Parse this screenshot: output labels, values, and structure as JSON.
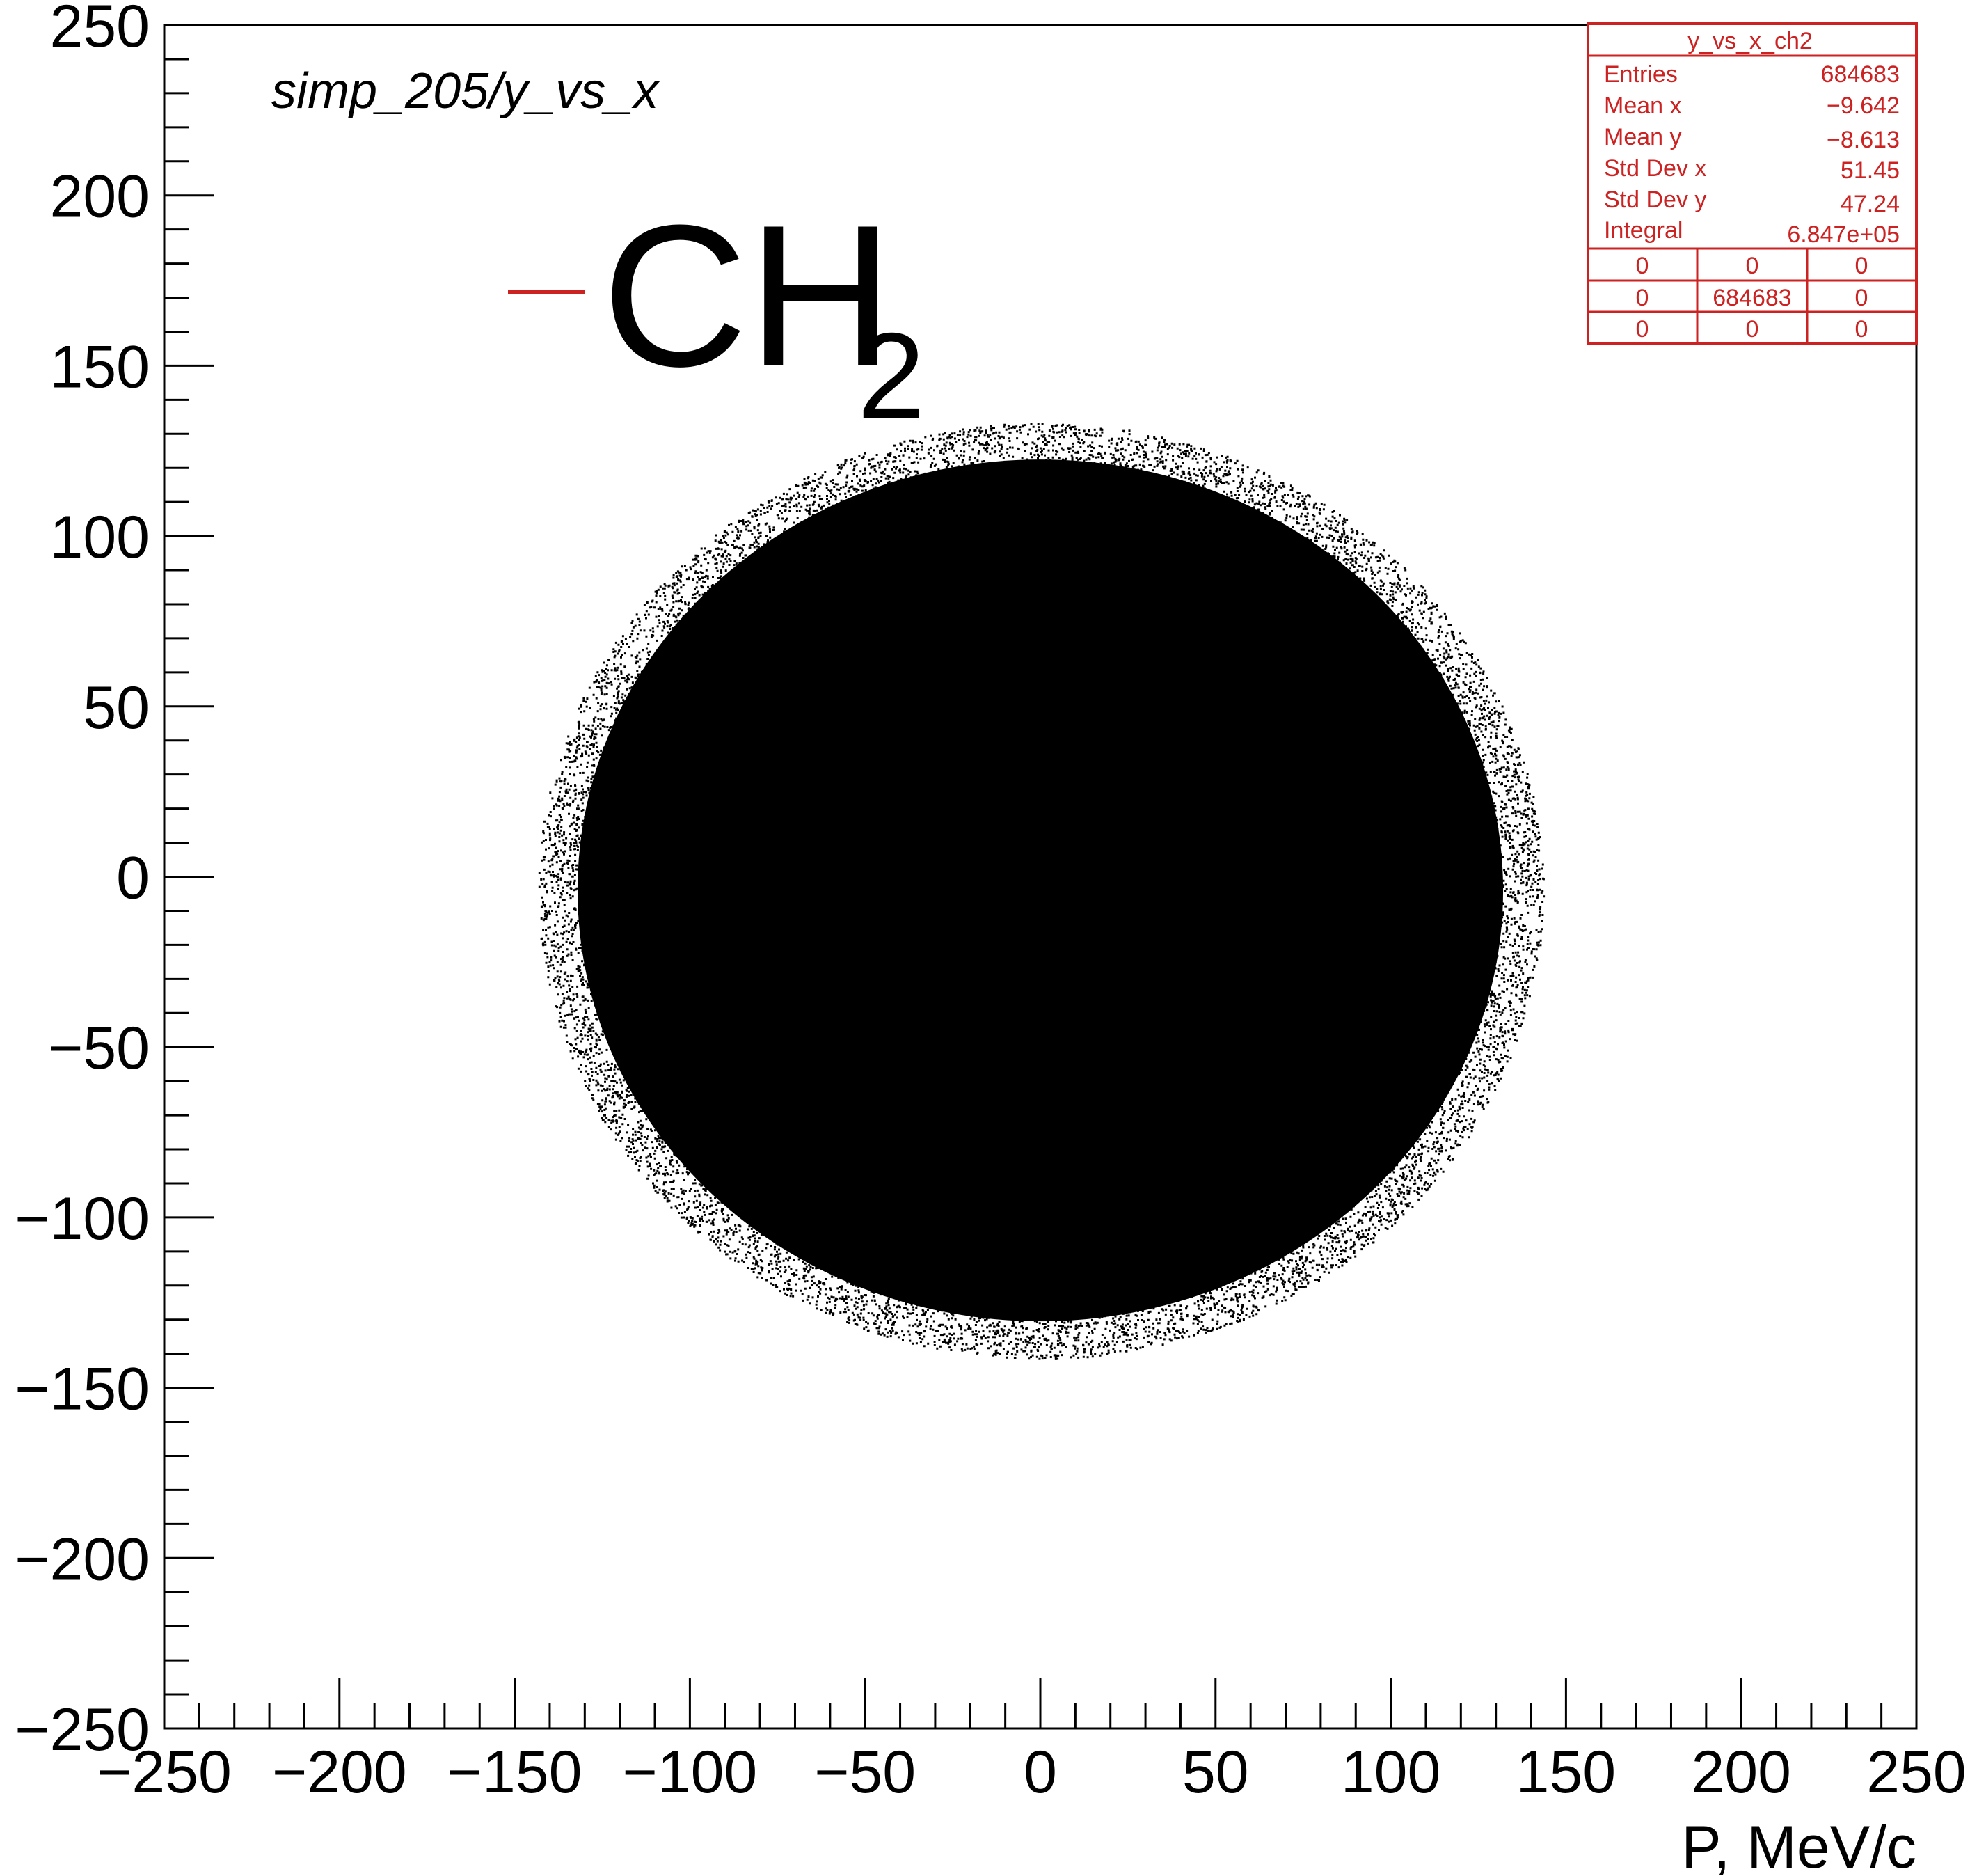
{
  "chart_data": {
    "type": "scatter",
    "title": "simp_205/y_vs_x",
    "xlabel": "P, MeV/c",
    "ylabel": "",
    "xlim": [
      -250,
      250
    ],
    "ylim": [
      -250,
      250
    ],
    "x_ticks": [
      -250,
      -200,
      -150,
      -100,
      -50,
      0,
      50,
      100,
      150,
      200,
      250
    ],
    "y_ticks": [
      -250,
      -200,
      -150,
      -100,
      -50,
      0,
      50,
      100,
      150,
      200,
      250
    ],
    "x_tick_labels": [
      "−250",
      "−200",
      "−150",
      "−100",
      "−50",
      "0",
      "50",
      "100",
      "150",
      "200",
      "250"
    ],
    "y_tick_labels": [
      "−250",
      "−200",
      "−150",
      "−100",
      "−50",
      "0",
      "50",
      "100",
      "150",
      "200",
      "250"
    ],
    "grid": false,
    "marker_color": "#000000",
    "series": [
      {
        "name": "CH2",
        "color": "#cc2222",
        "distribution": {
          "center_x": -9.642,
          "center_y": -8.613,
          "extent_x": [
            -142,
            142
          ],
          "extent_y": [
            -140,
            132
          ],
          "std_x": 51.45,
          "std_y": 47.24,
          "entries": 684683
        }
      }
    ],
    "legend": {
      "position": "top-left",
      "entries": [
        {
          "label": "CH",
          "subscript": "2",
          "color": "#cc2222"
        }
      ]
    },
    "stats_box": {
      "position": "top-right",
      "title": "y_vs_x_ch2",
      "rows": [
        {
          "label": "Entries",
          "value": "684683"
        },
        {
          "label": "Mean x",
          "value": "−9.642"
        },
        {
          "label": "Mean y",
          "value": "−8.613"
        },
        {
          "label": "Std Dev x",
          "value": "51.45"
        },
        {
          "label": "Std Dev y",
          "value": "47.24"
        },
        {
          "label": "Integral",
          "value": "6.847e+05"
        }
      ],
      "grid": [
        [
          "0",
          "0",
          "0"
        ],
        [
          "0",
          "684683",
          "0"
        ],
        [
          "0",
          "0",
          "0"
        ]
      ],
      "color": "#cc2222"
    }
  }
}
